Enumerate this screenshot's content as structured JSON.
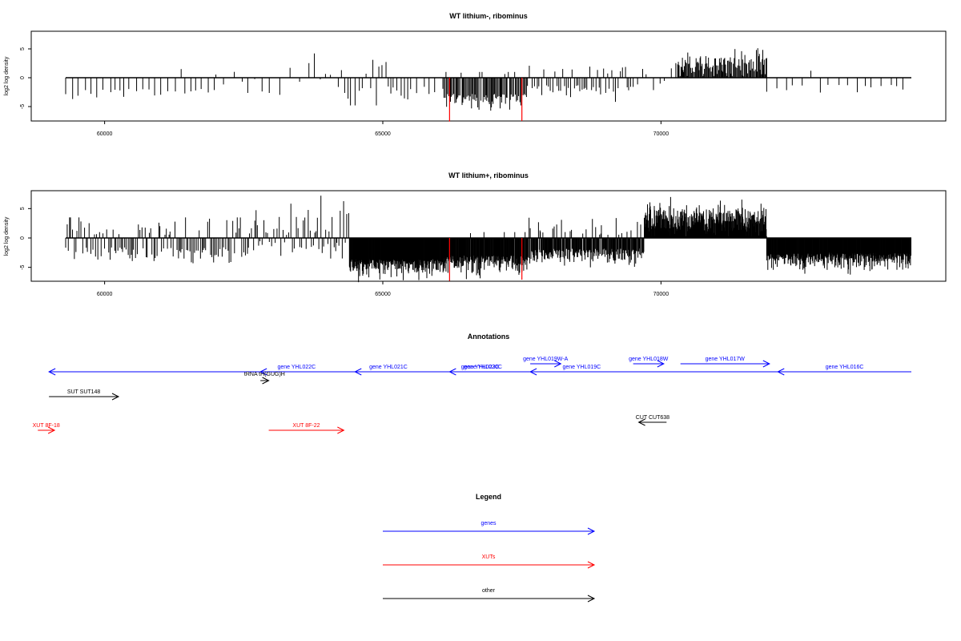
{
  "chart_data": [
    {
      "type": "bar",
      "title": "WT lithium-, ribominus",
      "ylabel": "log2 log density",
      "xlim": [
        58700,
        74800
      ],
      "ylim": [
        -8,
        8
      ],
      "xticks": [
        60000,
        65000,
        70000
      ],
      "yticks": [
        5,
        0,
        -5
      ],
      "highlight_color": "#ff0000",
      "highlights": [
        {
          "x": 66200,
          "y": -7.6
        },
        {
          "x": 67500,
          "y": -7.5
        }
      ],
      "density": [
        {
          "x0": 59300,
          "x1": 62000,
          "every": 110,
          "mean": -1.9,
          "spread": 0.9,
          "min": -4.2,
          "max": 1.5,
          "posrate": 0.06
        },
        {
          "x0": 62000,
          "x1": 64200,
          "every": 140,
          "mean": -0.2,
          "spread": 1.6,
          "min": -3.2,
          "max": 6.7,
          "posrate": 0.5
        },
        {
          "x0": 64200,
          "x1": 65500,
          "every": 60,
          "mean": -1.5,
          "spread": 1.8,
          "min": -4.8,
          "max": 3.1,
          "posrate": 0.25
        },
        {
          "x0": 65500,
          "x1": 66100,
          "every": 110,
          "mean": -1.5,
          "spread": 1.0,
          "min": -3.8,
          "max": 1.5,
          "posrate": 0.1
        },
        {
          "x0": 66100,
          "x1": 67600,
          "every": 18,
          "mean": -2.8,
          "spread": 1.3,
          "min": -6.5,
          "max": 1.0,
          "posrate": 0.05
        },
        {
          "x0": 67600,
          "x1": 69500,
          "every": 40,
          "mean": -1.3,
          "spread": 1.0,
          "min": -4.4,
          "max": 3.6,
          "posrate": 0.2
        },
        {
          "x0": 69500,
          "x1": 70300,
          "every": 100,
          "mean": -0.5,
          "spread": 1.5,
          "min": -2.6,
          "max": 3.6,
          "posrate": 0.5
        },
        {
          "x0": 70300,
          "x1": 71900,
          "every": 14,
          "mean": 2.3,
          "spread": 1.2,
          "min": 0.3,
          "max": 6.7,
          "posrate": 1.0
        },
        {
          "x0": 71900,
          "x1": 74500,
          "every": 150,
          "mean": -1.2,
          "spread": 1.0,
          "min": -3.0,
          "max": 2.0,
          "posrate": 0.15
        }
      ]
    },
    {
      "type": "bar",
      "title": "WT lithium+, ribominus",
      "ylabel": "log2 log density",
      "xlim": [
        58700,
        74800
      ],
      "ylim": [
        -8,
        8
      ],
      "xticks": [
        60000,
        65000,
        70000
      ],
      "yticks": [
        5,
        0,
        -5
      ],
      "highlight_color": "#ff0000",
      "highlights": [
        {
          "x": 66200,
          "y": -7.3
        },
        {
          "x": 67500,
          "y": -7.1
        }
      ],
      "density": [
        {
          "x0": 59300,
          "x1": 62700,
          "every": 28,
          "mean": -1.6,
          "spread": 1.4,
          "min": -5.0,
          "max": 3.5,
          "posrate": 0.3
        },
        {
          "x0": 62700,
          "x1": 64400,
          "every": 30,
          "mean": -0.3,
          "spread": 1.8,
          "min": -3.5,
          "max": 7.2,
          "posrate": 0.5
        },
        {
          "x0": 64400,
          "x1": 66100,
          "every": 7,
          "mean": -3.6,
          "spread": 1.4,
          "min": -7.6,
          "max": -0.2,
          "posrate": 0.0
        },
        {
          "x0": 66100,
          "x1": 67600,
          "every": 8,
          "mean": -3.0,
          "spread": 1.4,
          "min": -7.0,
          "max": 1.0,
          "posrate": 0.05
        },
        {
          "x0": 67600,
          "x1": 69700,
          "every": 10,
          "mean": -1.8,
          "spread": 1.3,
          "min": -5.0,
          "max": 3.9,
          "posrate": 0.15
        },
        {
          "x0": 69700,
          "x1": 71900,
          "every": 6,
          "mean": 3.0,
          "spread": 1.4,
          "min": 0.3,
          "max": 8.1,
          "posrate": 1.0
        },
        {
          "x0": 71900,
          "x1": 74500,
          "every": 7,
          "mean": -2.5,
          "spread": 1.3,
          "min": -6.5,
          "max": -0.2,
          "posrate": 0.0
        }
      ]
    }
  ],
  "annotations": {
    "title": "Annotations",
    "items": [
      {
        "label": "gene YHL023C",
        "color": "#0000ff",
        "x0": 74500,
        "x1": 59000,
        "dir": "left",
        "row": 2
      },
      {
        "label": "gene YHL022C",
        "color": "#0000ff",
        "x0": 64100,
        "x1": 62800,
        "dir": "left",
        "row": 2
      },
      {
        "label": "tRNA tH(GUG)H",
        "color": "#000000",
        "x0": 62800,
        "x1": 62950,
        "dir": "right",
        "row": 3
      },
      {
        "label": "gene YHL021C",
        "color": "#0000ff",
        "x0": 65700,
        "x1": 64500,
        "dir": "left",
        "row": 2
      },
      {
        "label": "gene YHL020C",
        "color": "#0000ff",
        "x0": 67400,
        "x1": 66200,
        "dir": "left",
        "row": 2
      },
      {
        "label": "gene YHL019W-A",
        "color": "#0000ff",
        "x0": 67650,
        "x1": 68200,
        "dir": "right",
        "row": 1
      },
      {
        "label": "gene YHL019C",
        "color": "#0000ff",
        "x0": 69500,
        "x1": 67650,
        "dir": "left",
        "row": 2
      },
      {
        "label": "gene YHL018W",
        "color": "#0000ff",
        "x0": 69500,
        "x1": 70050,
        "dir": "right",
        "row": 1
      },
      {
        "label": "gene YHL017W",
        "color": "#0000ff",
        "x0": 70350,
        "x1": 71950,
        "dir": "right",
        "row": 1
      },
      {
        "label": "gene YHL016C",
        "color": "#0000ff",
        "x0": 74500,
        "x1": 72100,
        "dir": "left",
        "row": 2
      },
      {
        "label": "SUT SUT148",
        "color": "#000000",
        "x0": 59000,
        "x1": 60250,
        "dir": "right",
        "row": 4
      },
      {
        "label": "CUT CUT638",
        "color": "#000000",
        "x0": 70100,
        "x1": 69600,
        "dir": "left",
        "row": 5
      },
      {
        "label": "XUT 8F-18",
        "color": "#ff0000",
        "x0": 58800,
        "x1": 59100,
        "dir": "right",
        "row": 6
      },
      {
        "label": "XUT 8F-22",
        "color": "#ff0000",
        "x0": 62950,
        "x1": 64300,
        "dir": "right",
        "row": 6
      }
    ]
  },
  "legend": {
    "title": "Legend",
    "entries": [
      {
        "label": "genes",
        "color": "#0000ff"
      },
      {
        "label": "XUTs",
        "color": "#ff0000"
      },
      {
        "label": "other",
        "color": "#000000"
      }
    ]
  }
}
